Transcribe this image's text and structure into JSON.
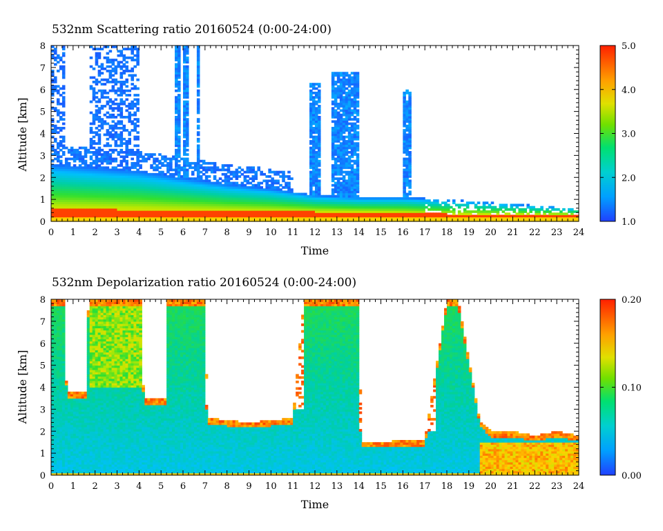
{
  "chart_data": [
    {
      "type": "heatmap",
      "title": "532nm Scattering ratio  20160524 (0:00-24:00)",
      "xlabel": "Time",
      "ylabel": "Altitude [km]",
      "xlim": [
        0,
        24
      ],
      "ylim": [
        0,
        8
      ],
      "x_ticks": [
        "0",
        "1",
        "2",
        "3",
        "4",
        "5",
        "6",
        "7",
        "8",
        "9",
        "10",
        "11",
        "12",
        "13",
        "14",
        "15",
        "16",
        "17",
        "18",
        "19",
        "20",
        "21",
        "22",
        "23",
        "24"
      ],
      "y_ticks": [
        "0",
        "1",
        "2",
        "3",
        "4",
        "5",
        "6",
        "7",
        "8"
      ],
      "colorbar": {
        "min": 1.0,
        "max": 5.0,
        "ticks": [
          "1.0",
          "2.0",
          "3.0",
          "4.0",
          "5.0"
        ],
        "tick_values": [
          1.0,
          2.0,
          3.0,
          4.0,
          5.0
        ]
      },
      "colormap": [
        "#2040ff",
        "#00bfff",
        "#00d0a0",
        "#30e030",
        "#c0e800",
        "#ffd000",
        "#ff8000",
        "#ff2000"
      ],
      "approx_features": {
        "surface_layer_top_km": [
          [
            0,
            0.6
          ],
          [
            6,
            0.5
          ],
          [
            12,
            0.45
          ],
          [
            16,
            0.4
          ],
          [
            18,
            0.35
          ],
          [
            24,
            0.3
          ]
        ],
        "boundary_layer_top_km": [
          [
            0,
            2.6
          ],
          [
            4,
            2.3
          ],
          [
            8,
            1.7
          ],
          [
            10,
            1.5
          ],
          [
            12,
            1.2
          ],
          [
            14,
            1.1
          ],
          [
            16,
            1.1
          ],
          [
            18,
            1.0
          ],
          [
            24,
            0.6
          ]
        ],
        "cloud_columns": [
          {
            "t_start": 11.7,
            "t_end": 12.3,
            "top_km": 6.3
          },
          {
            "t_start": 12.8,
            "t_end": 14.0,
            "top_km": 6.8
          },
          {
            "t_start": 5.6,
            "t_end": 5.9,
            "top_km": 8.0
          },
          {
            "t_start": 6.0,
            "t_end": 6.3,
            "top_km": 8.0
          },
          {
            "t_start": 6.6,
            "t_end": 6.8,
            "top_km": 8.0
          },
          {
            "t_start": 16.0,
            "t_end": 16.4,
            "top_km": 6.0
          }
        ]
      }
    },
    {
      "type": "heatmap",
      "title": "532nm Depolarization ratio  20160524 (0:00-24:00)",
      "xlabel": "Time",
      "ylabel": "Altitude [km]",
      "xlim": [
        0,
        24
      ],
      "ylim": [
        0,
        8
      ],
      "x_ticks": [
        "0",
        "1",
        "2",
        "3",
        "4",
        "5",
        "6",
        "7",
        "8",
        "9",
        "10",
        "11",
        "12",
        "13",
        "14",
        "15",
        "16",
        "17",
        "18",
        "19",
        "20",
        "21",
        "22",
        "23",
        "24"
      ],
      "y_ticks": [
        "0",
        "1",
        "2",
        "3",
        "4",
        "5",
        "6",
        "7",
        "8"
      ],
      "colorbar": {
        "min": 0.0,
        "max": 0.2,
        "ticks": [
          "0.00",
          "0.10",
          "0.20"
        ],
        "tick_values": [
          0.0,
          0.1,
          0.2
        ]
      },
      "colormap": [
        "#2040ff",
        "#00bfff",
        "#00d0a0",
        "#30e030",
        "#c0e800",
        "#ffd000",
        "#ff8000",
        "#ff2000"
      ],
      "approx_features": {
        "valid_data_top_km": [
          [
            0,
            8
          ],
          [
            0.6,
            8
          ],
          [
            0.7,
            3.8
          ],
          [
            1.6,
            3.8
          ],
          [
            1.7,
            8
          ],
          [
            4.1,
            8
          ],
          [
            4.2,
            3.5
          ],
          [
            5.2,
            3.5
          ],
          [
            5.3,
            8
          ],
          [
            7.0,
            8
          ],
          [
            7.1,
            2.6
          ],
          [
            9.0,
            2.4
          ],
          [
            11.0,
            2.6
          ],
          [
            11.5,
            8
          ],
          [
            14.0,
            8
          ],
          [
            14.1,
            1.5
          ],
          [
            17.0,
            1.6
          ],
          [
            18.0,
            8
          ],
          [
            18.5,
            8
          ],
          [
            19.5,
            2.5
          ],
          [
            20.0,
            2.0
          ],
          [
            21.0,
            2.0
          ],
          [
            22.0,
            1.8
          ],
          [
            23.0,
            2.0
          ],
          [
            24.0,
            1.8
          ]
        ]
      }
    }
  ]
}
